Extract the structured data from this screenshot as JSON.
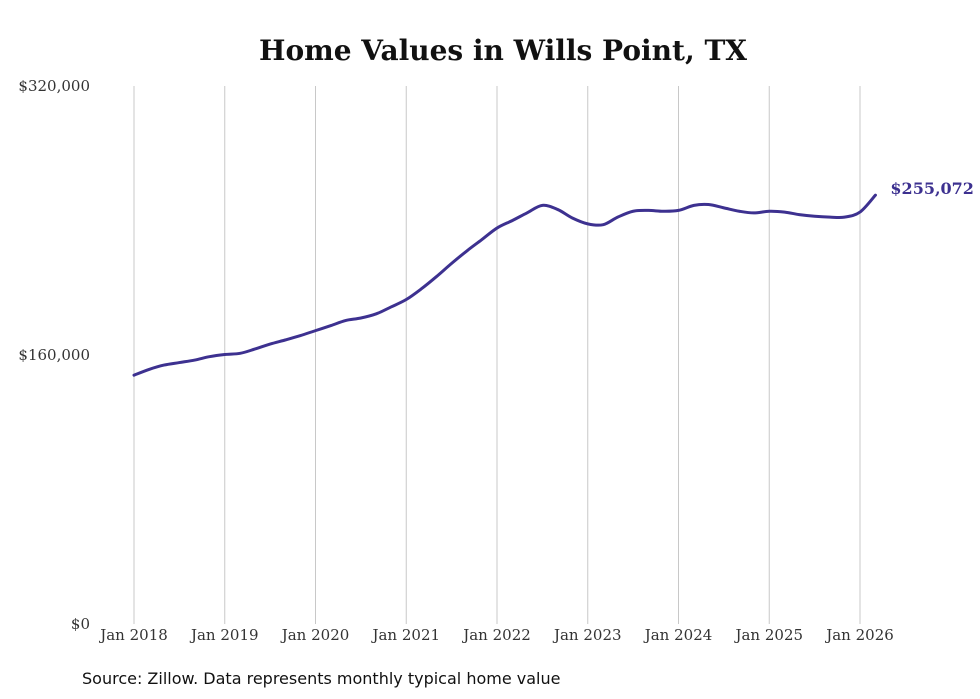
{
  "chart_data": {
    "type": "line",
    "title": "Home Values in Wills Point, TX",
    "xlabel": "",
    "ylabel": "",
    "ylim": [
      0,
      320000
    ],
    "y_ticks": [
      0,
      160000,
      320000
    ],
    "y_tick_labels": [
      "$0",
      "$160,000",
      "$320,000"
    ],
    "x_ticks": [
      2018,
      2019,
      2020,
      2021,
      2022,
      2023,
      2024,
      2025,
      2026
    ],
    "x_tick_labels": [
      "Jan 2018",
      "Jan 2019",
      "Jan 2020",
      "Jan 2021",
      "Jan 2022",
      "Jan 2023",
      "Jan 2024",
      "Jan 2025",
      "Jan 2026"
    ],
    "grid": "vertical",
    "line_color": "#3d3190",
    "series": [
      {
        "name": "Typical home value",
        "points": [
          [
            2018.0,
            148000
          ],
          [
            2018.17,
            151500
          ],
          [
            2018.33,
            154000
          ],
          [
            2018.5,
            155500
          ],
          [
            2018.67,
            157000
          ],
          [
            2018.83,
            159000
          ],
          [
            2019.0,
            160300
          ],
          [
            2019.17,
            161000
          ],
          [
            2019.33,
            163500
          ],
          [
            2019.5,
            166500
          ],
          [
            2019.67,
            169000
          ],
          [
            2019.83,
            171500
          ],
          [
            2020.0,
            174500
          ],
          [
            2020.17,
            177500
          ],
          [
            2020.33,
            180500
          ],
          [
            2020.5,
            182000
          ],
          [
            2020.67,
            184500
          ],
          [
            2020.83,
            188500
          ],
          [
            2021.0,
            193000
          ],
          [
            2021.17,
            199500
          ],
          [
            2021.33,
            206500
          ],
          [
            2021.5,
            214500
          ],
          [
            2021.67,
            222000
          ],
          [
            2021.83,
            228500
          ],
          [
            2022.0,
            235500
          ],
          [
            2022.17,
            240000
          ],
          [
            2022.33,
            244500
          ],
          [
            2022.5,
            249000
          ],
          [
            2022.67,
            246500
          ],
          [
            2022.83,
            241500
          ],
          [
            2023.0,
            238000
          ],
          [
            2023.17,
            237500
          ],
          [
            2023.33,
            242000
          ],
          [
            2023.5,
            245500
          ],
          [
            2023.67,
            246000
          ],
          [
            2023.83,
            245500
          ],
          [
            2024.0,
            246000
          ],
          [
            2024.17,
            249000
          ],
          [
            2024.33,
            249500
          ],
          [
            2024.5,
            247500
          ],
          [
            2024.67,
            245500
          ],
          [
            2024.83,
            244500
          ],
          [
            2025.0,
            245500
          ],
          [
            2025.17,
            245000
          ],
          [
            2025.33,
            243500
          ],
          [
            2025.5,
            242500
          ],
          [
            2025.67,
            242000
          ],
          [
            2025.83,
            242000
          ],
          [
            2026.0,
            245000
          ],
          [
            2026.17,
            255072
          ]
        ]
      }
    ],
    "annotations": [
      {
        "text": "$255,072",
        "x": 2026.17,
        "y": 255072
      }
    ]
  },
  "source_note": "Source: Zillow. Data represents monthly typical home value"
}
